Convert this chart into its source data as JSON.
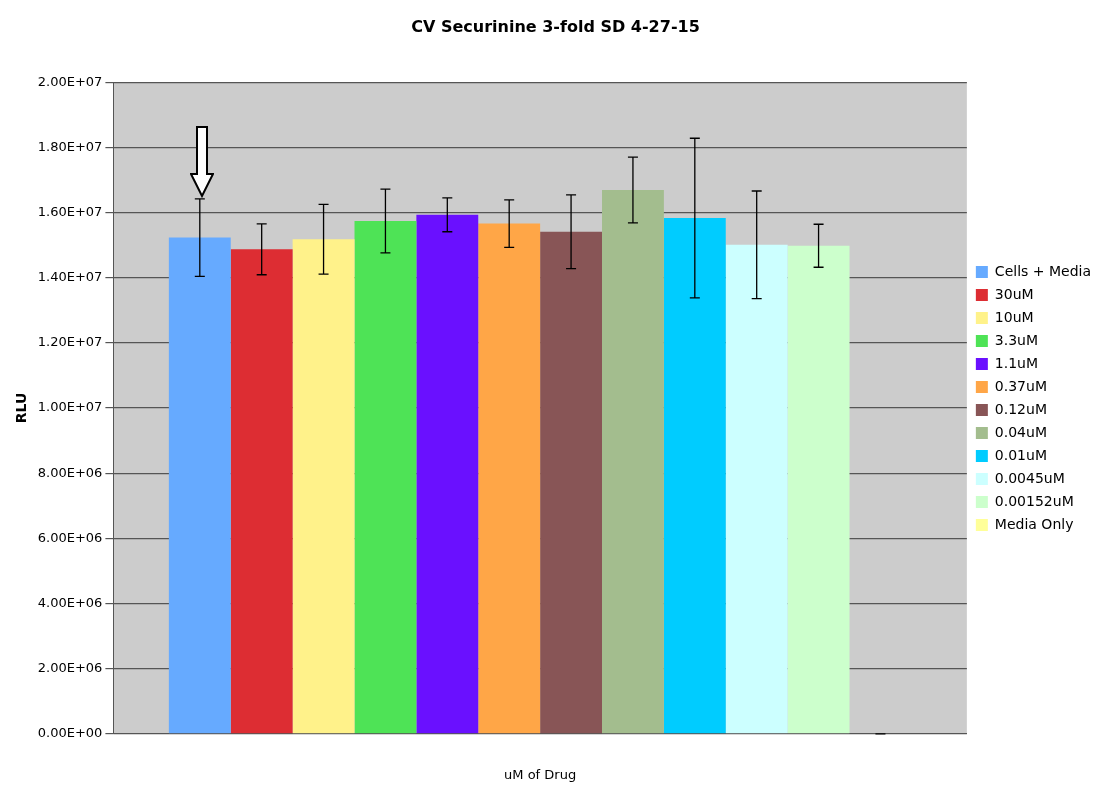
{
  "chart_data": {
    "type": "bar",
    "title": "CV Securinine 3-fold SD 4-27-15",
    "xlabel": "uM of Drug",
    "ylabel": "RLU",
    "categories": [
      null
    ],
    "series": [
      {
        "name": "Cells + Media",
        "color": "#66aaff",
        "values": [
          15230000
        ],
        "errors": [
          1190000
        ]
      },
      {
        "name": "30uM",
        "color": "#dd2d33",
        "values": [
          14870000
        ],
        "errors": [
          780000
        ]
      },
      {
        "name": "10uM",
        "color": "#fff28a",
        "values": [
          15180000
        ],
        "errors": [
          1070000
        ]
      },
      {
        "name": "3.3uM",
        "color": "#4ee356",
        "values": [
          15740000
        ],
        "errors": [
          980000
        ]
      },
      {
        "name": "1.1uM",
        "color": "#6a10ff",
        "values": [
          15930000
        ],
        "errors": [
          520000
        ]
      },
      {
        "name": "0.37uM",
        "color": "#ffa647",
        "values": [
          15660000
        ],
        "errors": [
          730000
        ]
      },
      {
        "name": "0.12uM",
        "color": "#885556",
        "values": [
          15410000
        ],
        "errors": [
          1130000
        ]
      },
      {
        "name": "0.04uM",
        "color": "#a3bd8e",
        "values": [
          16690000
        ],
        "errors": [
          1010000
        ]
      },
      {
        "name": "0.01uM",
        "color": "#00ccff",
        "values": [
          15830000
        ],
        "errors": [
          2450000
        ]
      },
      {
        "name": "0.0045uM",
        "color": "#ccffff",
        "values": [
          15010000
        ],
        "errors": [
          1650000
        ]
      },
      {
        "name": "0.00152uM",
        "color": "#ccffcc",
        "values": [
          14980000
        ],
        "errors": [
          660000
        ]
      },
      {
        "name": "Media Only",
        "color": "#ffff99",
        "values": [
          0
        ],
        "errors": [
          0
        ]
      }
    ],
    "ylim": [
      0,
      20000000
    ],
    "yticks": [
      {
        "value": 0,
        "label": "0.00E+00"
      },
      {
        "value": 2000000,
        "label": "2.00E+06"
      },
      {
        "value": 4000000,
        "label": "4.00E+06"
      },
      {
        "value": 6000000,
        "label": "6.00E+06"
      },
      {
        "value": 8000000,
        "label": "8.00E+06"
      },
      {
        "value": 10000000,
        "label": "1.00E+07"
      },
      {
        "value": 12000000,
        "label": "1.20E+07"
      },
      {
        "value": 14000000,
        "label": "1.40E+07"
      },
      {
        "value": 16000000,
        "label": "1.60E+07"
      },
      {
        "value": 18000000,
        "label": "1.80E+07"
      },
      {
        "value": 20000000,
        "label": "2.00E+07"
      }
    ],
    "grid": "y",
    "legend": "right"
  }
}
